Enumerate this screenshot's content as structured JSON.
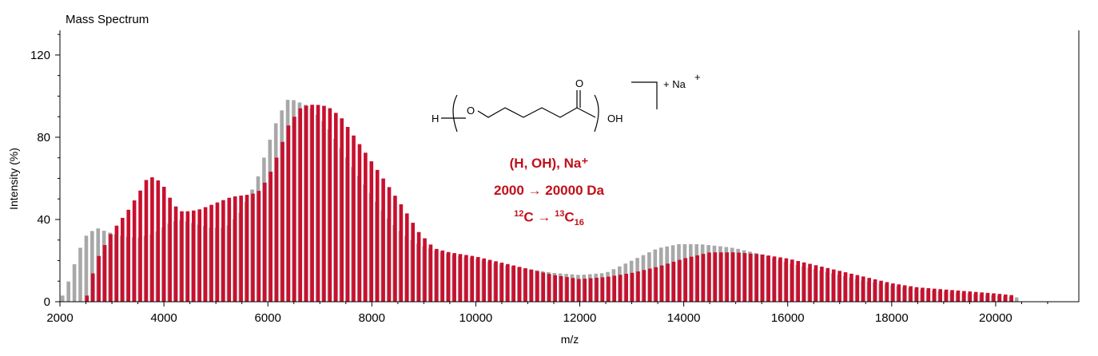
{
  "chart_data": {
    "type": "bar",
    "title": "Mass Spectrum",
    "xlabel": "m/z",
    "ylabel": "Intensity (%)",
    "xlim": [
      2000,
      21600
    ],
    "ylim": [
      0,
      132
    ],
    "xticks": [
      "2000",
      "4000",
      "6000",
      "8000",
      "10000",
      "12000",
      "14000",
      "16000",
      "18000",
      "20000"
    ],
    "yticks": [
      "0",
      "40",
      "80",
      "120"
    ],
    "grid": false,
    "colors": {
      "red": "#c8102e",
      "grey": "#a8a8a8"
    },
    "series": [
      {
        "id": "red",
        "peak_spacing": 114,
        "x_range": [
          2520,
          20390
        ],
        "envelope": [
          [
            2520,
            3
          ],
          [
            2700,
            20
          ],
          [
            3000,
            34
          ],
          [
            3300,
            44
          ],
          [
            3500,
            52
          ],
          [
            3700,
            61
          ],
          [
            3850,
            60
          ],
          [
            4000,
            56
          ],
          [
            4150,
            49
          ],
          [
            4300,
            44
          ],
          [
            4500,
            44
          ],
          [
            4700,
            45
          ],
          [
            5000,
            48
          ],
          [
            5300,
            51
          ],
          [
            5600,
            52
          ],
          [
            5800,
            53
          ],
          [
            6000,
            60
          ],
          [
            6200,
            72
          ],
          [
            6400,
            86
          ],
          [
            6650,
            95
          ],
          [
            6900,
            96
          ],
          [
            7150,
            95
          ],
          [
            7400,
            90
          ],
          [
            7700,
            79
          ],
          [
            8000,
            68
          ],
          [
            8300,
            57
          ],
          [
            8600,
            46
          ],
          [
            8900,
            34
          ],
          [
            9200,
            26
          ],
          [
            9500,
            24
          ],
          [
            10000,
            22
          ],
          [
            10500,
            19
          ],
          [
            11000,
            16
          ],
          [
            11500,
            13
          ],
          [
            12000,
            11
          ],
          [
            12500,
            12
          ],
          [
            13000,
            14
          ],
          [
            13500,
            17
          ],
          [
            14000,
            21
          ],
          [
            14500,
            24
          ],
          [
            15000,
            24
          ],
          [
            15500,
            23
          ],
          [
            16000,
            21
          ],
          [
            16500,
            18
          ],
          [
            17000,
            15
          ],
          [
            17500,
            12
          ],
          [
            18000,
            9
          ],
          [
            18500,
            7
          ],
          [
            19000,
            6
          ],
          [
            19500,
            5
          ],
          [
            20000,
            4
          ],
          [
            20400,
            3
          ]
        ]
      },
      {
        "id": "grey",
        "peak_spacing": 114,
        "x_range": [
          2050,
          20450
        ],
        "envelope": [
          [
            2050,
            3
          ],
          [
            2200,
            12
          ],
          [
            2350,
            24
          ],
          [
            2500,
            32
          ],
          [
            2700,
            36
          ],
          [
            2900,
            34
          ],
          [
            3200,
            32
          ],
          [
            3500,
            31
          ],
          [
            3800,
            33
          ],
          [
            4100,
            38
          ],
          [
            4300,
            40
          ],
          [
            4600,
            38
          ],
          [
            4900,
            36
          ],
          [
            5200,
            36
          ],
          [
            5500,
            44
          ],
          [
            5800,
            60
          ],
          [
            6000,
            76
          ],
          [
            6200,
            90
          ],
          [
            6400,
            99
          ],
          [
            6600,
            97
          ],
          [
            6800,
            95
          ],
          [
            7100,
            87
          ],
          [
            7400,
            75
          ],
          [
            7700,
            63
          ],
          [
            8000,
            52
          ],
          [
            8300,
            41
          ],
          [
            8600,
            33
          ],
          [
            8900,
            28
          ],
          [
            9200,
            25
          ],
          [
            9500,
            23
          ],
          [
            10000,
            21
          ],
          [
            10500,
            18
          ],
          [
            11000,
            16
          ],
          [
            11500,
            14
          ],
          [
            12000,
            13
          ],
          [
            12500,
            14
          ],
          [
            13000,
            20
          ],
          [
            13500,
            26
          ],
          [
            13900,
            28
          ],
          [
            14300,
            28
          ],
          [
            14700,
            27
          ],
          [
            15000,
            26
          ],
          [
            15500,
            23
          ],
          [
            16000,
            19
          ],
          [
            16500,
            16
          ],
          [
            17000,
            13
          ],
          [
            17500,
            10
          ],
          [
            18000,
            8
          ],
          [
            18500,
            6
          ],
          [
            19000,
            5
          ],
          [
            19500,
            4
          ],
          [
            20000,
            3
          ],
          [
            20450,
            2
          ]
        ]
      }
    ],
    "structure": {
      "end_group_left": "H",
      "repeat_atom": "O",
      "carbonyl": "O",
      "end_group_right": "OH",
      "adduct": "+ Na",
      "adduct_charge": "+"
    },
    "annotations": {
      "line1": "(H, OH), Na⁺",
      "line2": "2000 → 20000 Da",
      "line3_a": "12",
      "line3_b": "C  →  ",
      "line3_c": "13",
      "line3_d": "C",
      "line3_e": "16"
    }
  }
}
